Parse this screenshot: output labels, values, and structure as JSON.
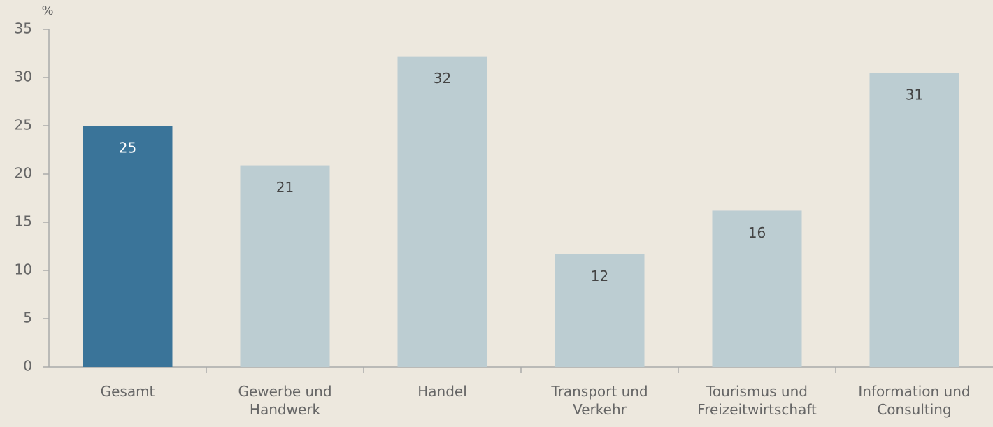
{
  "chart_data": {
    "type": "bar",
    "y_label": "%",
    "categories": [
      "Gesamt",
      "Gewerbe und\nHandwerk",
      "Handel",
      "Transport und\nVerkehr",
      "Tourismus und\nFreizeitwirtschaft",
      "Information und\nConsulting"
    ],
    "values": [
      25,
      20.9,
      32.2,
      11.7,
      16.2,
      30.5
    ],
    "value_labels": [
      "25",
      "21",
      "32",
      "12",
      "16",
      "31"
    ],
    "colors": [
      "#3a7499",
      "#bccdd2",
      "#bccdd2",
      "#bccdd2",
      "#bccdd2",
      "#bccdd2"
    ],
    "ylim": [
      0,
      35
    ],
    "yticks": [
      0,
      5,
      10,
      15,
      20,
      25,
      30,
      35
    ],
    "grid": false
  }
}
